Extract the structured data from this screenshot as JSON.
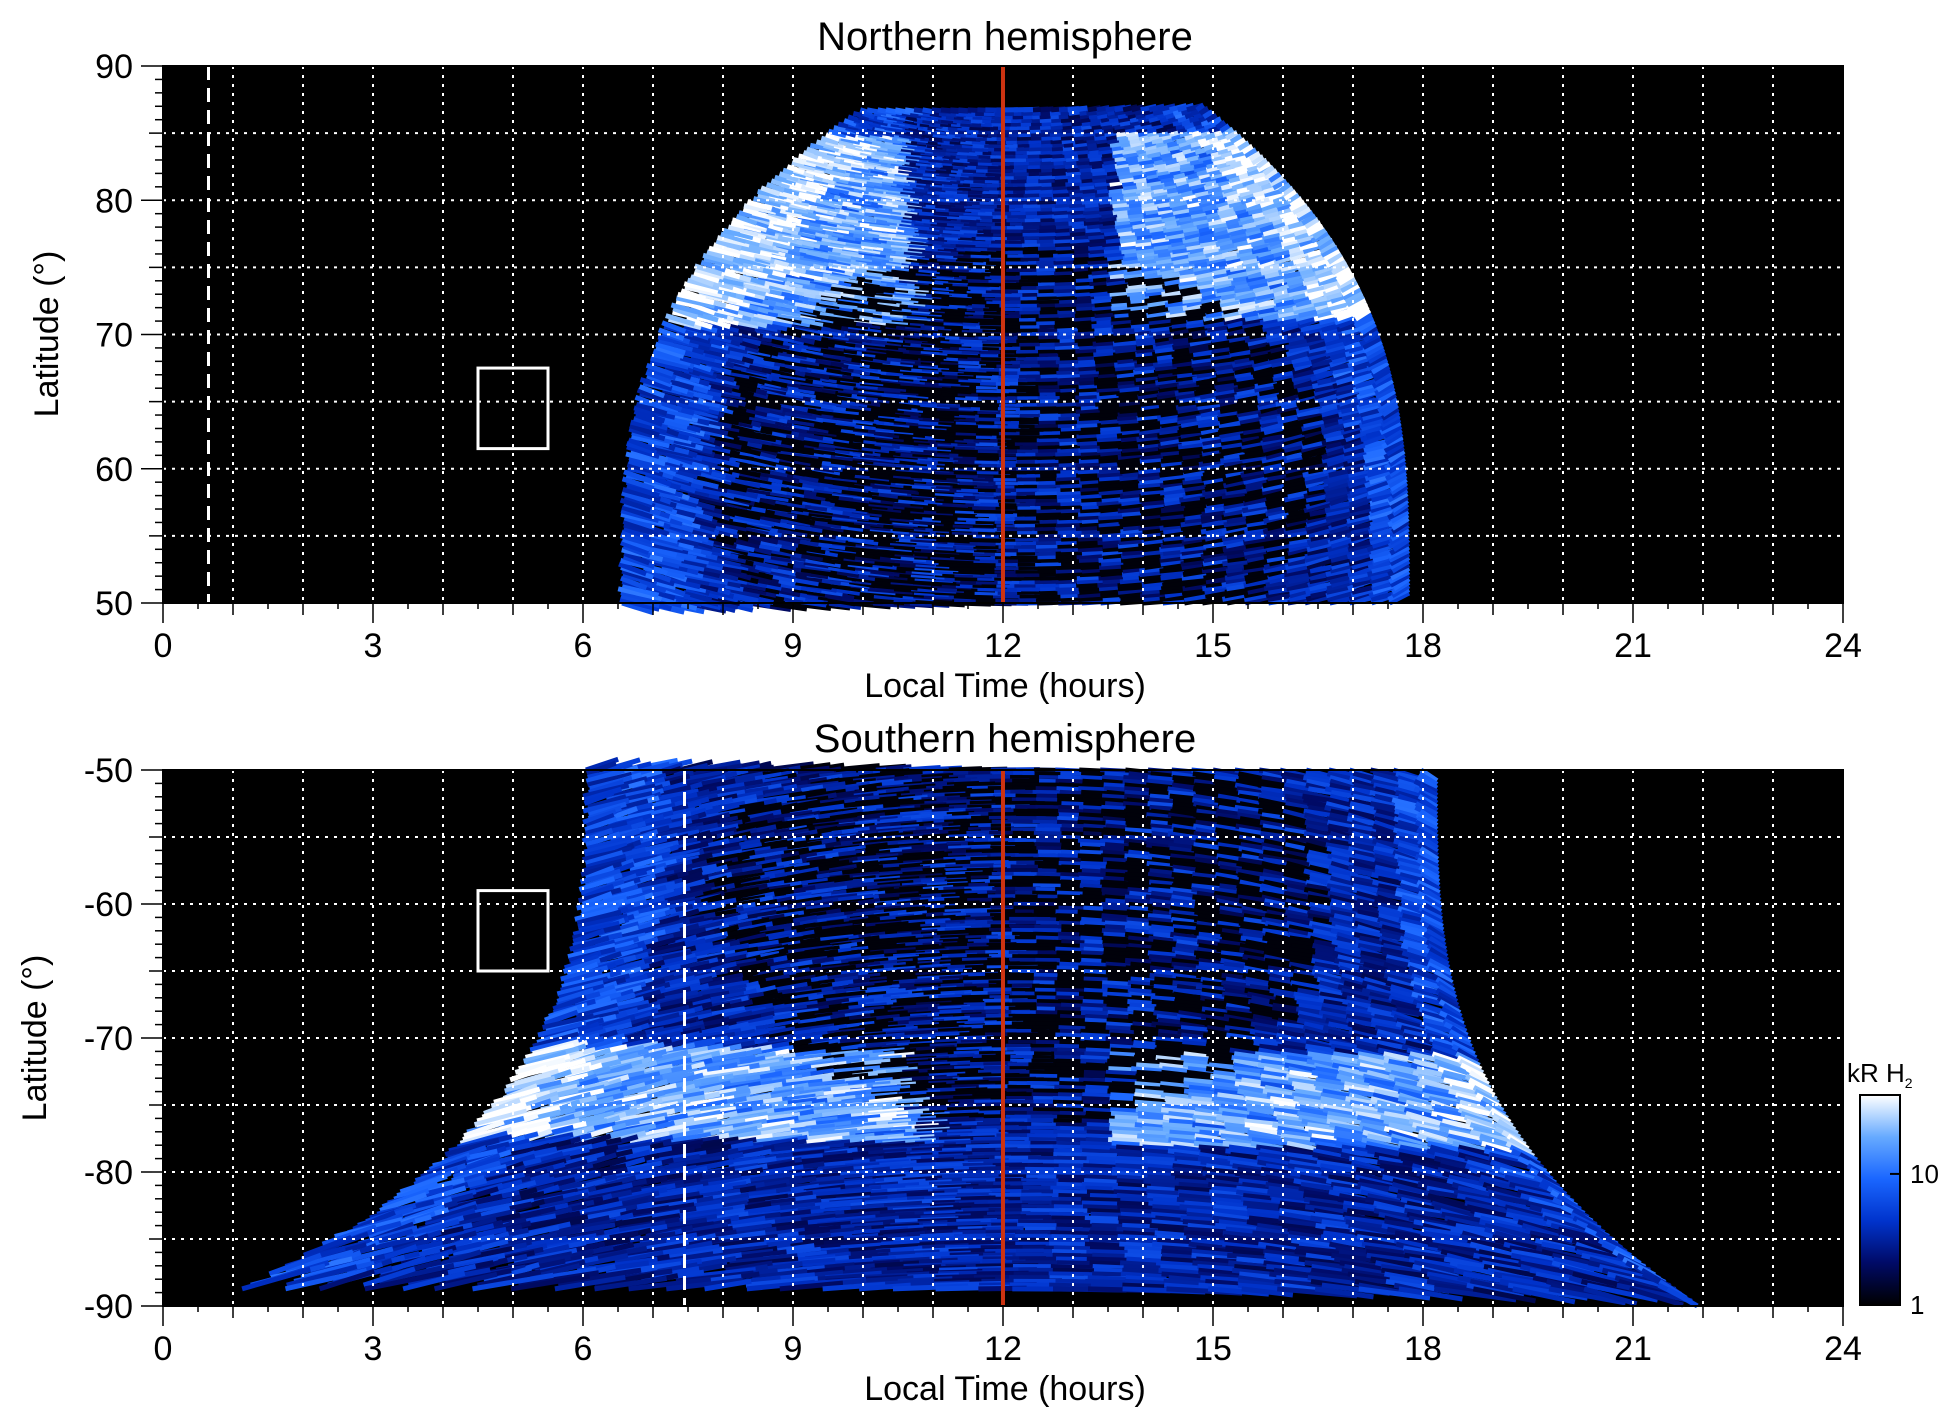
{
  "chart_data": [
    {
      "type": "heatmap",
      "title": "Northern hemisphere",
      "xlabel": "Local Time (hours)",
      "ylabel": "Latitude (°)",
      "xlim": [
        0,
        24
      ],
      "ylim": [
        50,
        90
      ],
      "xticks": [
        0,
        3,
        6,
        9,
        12,
        15,
        18,
        21,
        24
      ],
      "yticks": [
        50,
        60,
        70,
        80,
        90
      ],
      "grid": true,
      "grid_x": [
        1,
        2,
        3,
        4,
        5,
        6,
        7,
        8,
        9,
        10,
        11,
        13,
        14,
        15,
        16,
        17,
        18,
        19,
        20,
        21,
        22,
        23
      ],
      "grid_y": [
        55,
        60,
        65,
        70,
        75,
        80,
        85
      ],
      "background": "#000000",
      "emission_region": {
        "lt_start_at_bottom": 6.5,
        "lt_end_at_bottom": 17.8,
        "lt_start_at_top": 10.0,
        "lt_end_at_top": 14.8,
        "lat_top": 87
      },
      "auroral_oval": {
        "center_lt": 12,
        "center_lat": 60,
        "bright_lat_range": [
          71,
          85
        ],
        "bright_lt_range": [
          8,
          16
        ]
      },
      "noon_line": {
        "x": 12,
        "color": "#cc3311"
      },
      "dashed_line": {
        "x": 0.65,
        "color": "#ffffff"
      },
      "box": {
        "x0": 4.5,
        "x1": 5.5,
        "y0": 61.5,
        "y1": 67.5,
        "color": "#ffffff"
      }
    },
    {
      "type": "heatmap",
      "title": "Southern hemisphere",
      "xlabel": "Local Time (hours)",
      "ylabel": "Latitude (°)",
      "xlim": [
        0,
        24
      ],
      "ylim": [
        -90,
        -50
      ],
      "xticks": [
        0,
        3,
        6,
        9,
        12,
        15,
        18,
        21,
        24
      ],
      "yticks": [
        -90,
        -80,
        -70,
        -60,
        -50
      ],
      "grid": true,
      "grid_x": [
        1,
        2,
        3,
        4,
        5,
        6,
        7,
        8,
        9,
        10,
        11,
        13,
        14,
        15,
        16,
        17,
        18,
        19,
        20,
        21,
        22,
        23
      ],
      "grid_y": [
        -85,
        -80,
        -75,
        -70,
        -65,
        -60,
        -55
      ],
      "background": "#000000",
      "emission_region": {
        "lt_start_at_top": 6.0,
        "lt_end_at_top": 18.2,
        "lt_start_at_bottom": 1.0,
        "lt_end_at_bottom": 22.0,
        "lat_bottom": -89
      },
      "auroral_oval": {
        "center_lt": 12,
        "center_lat": -60,
        "bright_lat_range": [
          -78,
          -71
        ],
        "bright_lt_range": [
          6,
          18
        ]
      },
      "noon_line": {
        "x": 12,
        "color": "#cc3311"
      },
      "dashed_line": {
        "x": 7.45,
        "color": "#ffffff"
      },
      "box": {
        "x0": 4.5,
        "x1": 5.5,
        "y0": -65,
        "y1": -59,
        "color": "#ffffff"
      }
    }
  ],
  "colorbar": {
    "label_main": "kR H",
    "label_sub": "2",
    "ticks": [
      "1",
      "10"
    ],
    "scale": "log",
    "range": [
      1,
      40
    ],
    "colors": [
      "#000000",
      "#000a66",
      "#0033cc",
      "#1a66ff",
      "#66aaff",
      "#ffffff"
    ]
  }
}
